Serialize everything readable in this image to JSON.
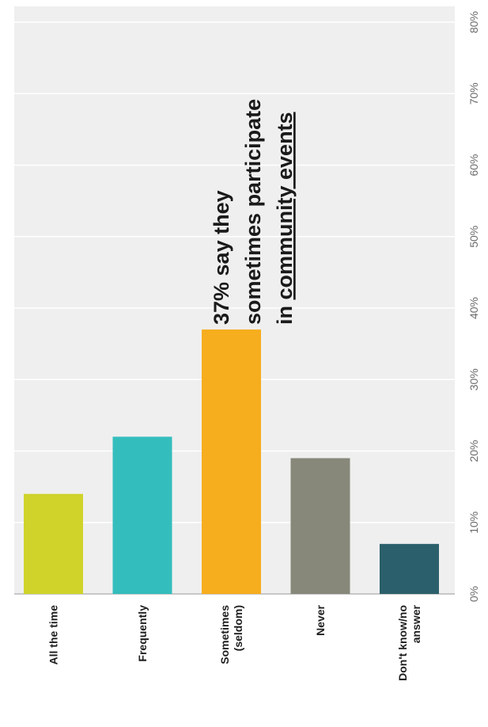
{
  "chart_data": {
    "type": "bar",
    "orientation": "rotated",
    "categories": [
      [
        "All the time"
      ],
      [
        "Frequently"
      ],
      [
        "Sometimes",
        "(seldom)"
      ],
      [
        "Never"
      ],
      [
        "Don't know/no",
        "answer"
      ]
    ],
    "values": [
      14,
      22,
      37,
      19,
      7
    ],
    "value_unit": "%",
    "ylim": [
      0,
      80
    ],
    "ticks": [
      "0%",
      "10%",
      "20%",
      "30%",
      "40%",
      "50%",
      "60%",
      "70%",
      "80%"
    ],
    "grid": true,
    "title": "",
    "xlabel": "",
    "ylabel": "",
    "colors": [
      "#cfd32a",
      "#34bdbd",
      "#f6ad1e",
      "#87887a",
      "#2b5f6b"
    ],
    "background_color": "#efefef",
    "annotation": {
      "lines": [
        "37% say they",
        "sometimes participate",
        "in community events"
      ],
      "underlined_text": "community events"
    }
  }
}
